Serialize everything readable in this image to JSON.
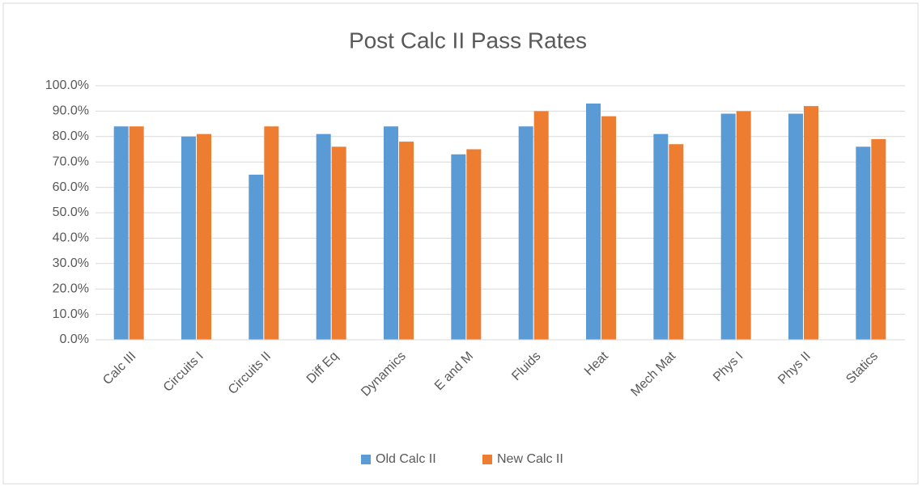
{
  "chart_data": {
    "type": "bar",
    "title": "Post Calc II Pass Rates",
    "categories": [
      "Calc III",
      "Circuits I",
      "Circuits II",
      "Diff Eq",
      "Dynamics",
      "E and M",
      "Fluids",
      "Heat",
      "Mech Mat",
      "Phys I",
      "Phys II",
      "Statics"
    ],
    "series": [
      {
        "name": "Old Calc II",
        "color": "#5b9bd5",
        "values": [
          84,
          80,
          65,
          81,
          84,
          73,
          84,
          93,
          81,
          89,
          89,
          76
        ]
      },
      {
        "name": "New Calc II",
        "color": "#ed7d31",
        "values": [
          84,
          81,
          84,
          76,
          78,
          75,
          90,
          88,
          77,
          90,
          92,
          79
        ]
      }
    ],
    "ylim": [
      0,
      100
    ],
    "yticks": [
      {
        "value": 0,
        "label": "0.0%"
      },
      {
        "value": 10,
        "label": "10.0%"
      },
      {
        "value": 20,
        "label": "20.0%"
      },
      {
        "value": 30,
        "label": "30.0%"
      },
      {
        "value": 40,
        "label": "40.0%"
      },
      {
        "value": 50,
        "label": "50.0%"
      },
      {
        "value": 60,
        "label": "60.0%"
      },
      {
        "value": 70,
        "label": "70.0%"
      },
      {
        "value": 80,
        "label": "80.0%"
      },
      {
        "value": 90,
        "label": "90.0%"
      },
      {
        "value": 100,
        "label": "100.0%"
      }
    ],
    "grid": true,
    "legend": "bottom"
  }
}
